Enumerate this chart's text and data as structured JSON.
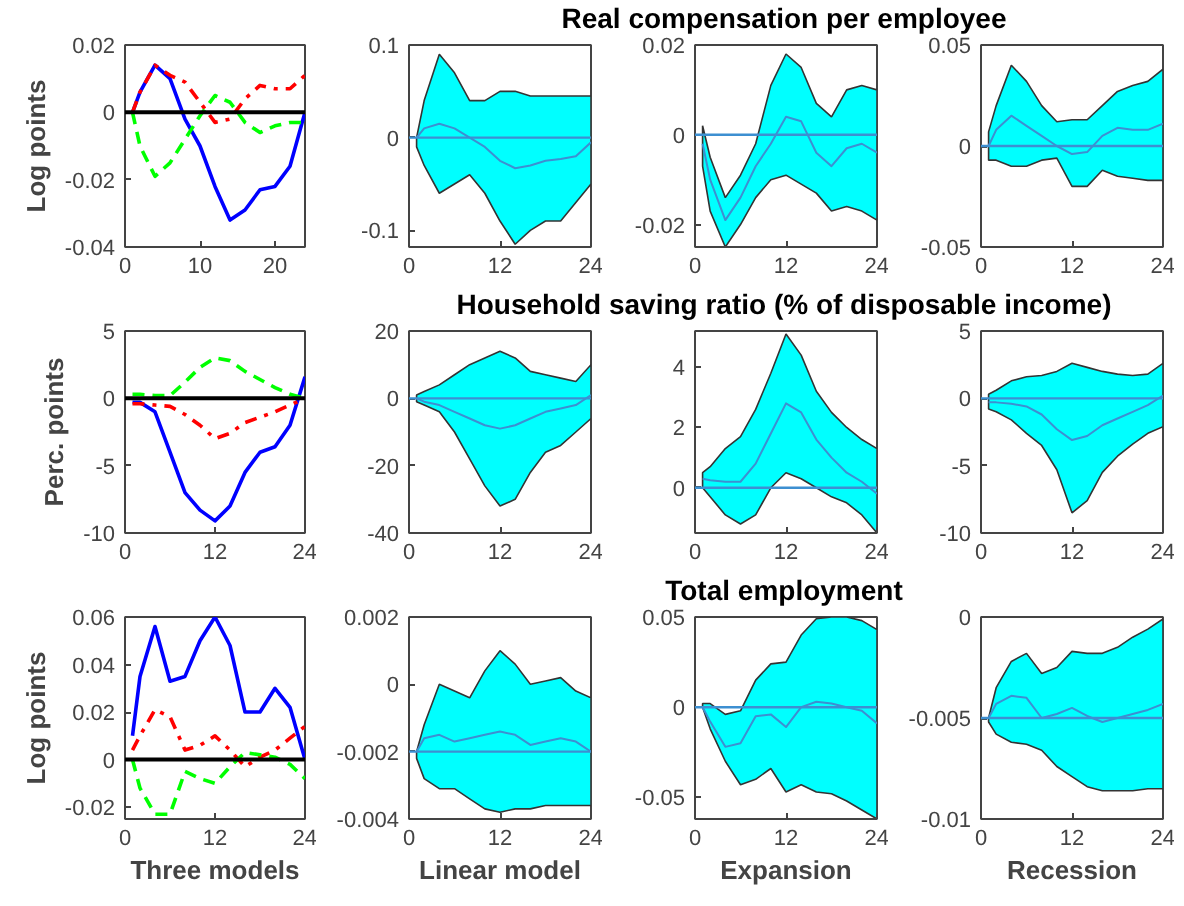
{
  "chart_data": [
    {
      "type": "line",
      "x": [
        1,
        2,
        4,
        6,
        8,
        10,
        12,
        14,
        16,
        18,
        20,
        22,
        24
      ],
      "xlim": [
        0,
        24
      ],
      "xticks": [
        0,
        10,
        20
      ],
      "ylim": [
        -0.04,
        0.02
      ],
      "yticks": [
        -0.04,
        -0.02,
        0,
        0.02
      ],
      "ylabel": "Log points",
      "ref_lines": [
        {
          "axis": "y",
          "value": 0,
          "color": "#000000"
        }
      ],
      "series": [
        {
          "color": "#0000ff",
          "line_style": "solid",
          "values": [
            0,
            0.006,
            0.014,
            0.01,
            -0.002,
            -0.01,
            -0.022,
            -0.032,
            -0.029,
            -0.023,
            -0.022,
            -0.016,
            0
          ]
        },
        {
          "color": "#ff0000",
          "line_style": "dashdot",
          "values": [
            0,
            0.006,
            0.014,
            0.011,
            0.009,
            0.003,
            -0.003,
            -0.002,
            0.004,
            0.008,
            0.007,
            0.007,
            0.011
          ]
        },
        {
          "color": "#00ff00",
          "line_style": "dashed",
          "values": [
            0,
            -0.01,
            -0.019,
            -0.015,
            -0.008,
            -0.001,
            0.005,
            0.003,
            -0.003,
            -0.006,
            -0.004,
            -0.003,
            -0.003
          ]
        }
      ]
    },
    {
      "type": "line",
      "x": [
        1,
        2,
        4,
        6,
        8,
        10,
        12,
        14,
        16,
        18,
        20,
        22,
        24
      ],
      "xlim": [
        0,
        24
      ],
      "xticks": [
        0,
        12,
        24
      ],
      "ylim": [
        -0.118,
        0.1
      ],
      "yticks": [
        -0.1,
        0,
        0.1
      ],
      "ref_lines": [
        {
          "axis": "y",
          "value": 0,
          "color": "#3d8fd1"
        }
      ],
      "series": [
        {
          "color": "#3d8fd1",
          "values": [
            0,
            0.01,
            0.015,
            0.01,
            0,
            -0.01,
            -0.025,
            -0.033,
            -0.03,
            -0.025,
            -0.023,
            -0.02,
            -0.005
          ],
          "lower": [
            -0.01,
            -0.03,
            -0.06,
            -0.05,
            -0.04,
            -0.06,
            -0.09,
            -0.115,
            -0.1,
            -0.09,
            -0.09,
            -0.07,
            -0.05
          ],
          "upper": [
            0,
            0.04,
            0.09,
            0.07,
            0.04,
            0.04,
            0.05,
            0.05,
            0.045,
            0.045,
            0.045,
            0.045,
            0.045
          ]
        }
      ]
    },
    {
      "type": "line",
      "x": [
        1,
        2,
        4,
        6,
        8,
        10,
        12,
        14,
        16,
        18,
        20,
        22,
        24
      ],
      "xlim": [
        0,
        24
      ],
      "xticks": [
        0,
        12,
        24
      ],
      "ylim": [
        -0.025,
        0.02
      ],
      "yticks": [
        -0.02,
        0,
        0.02
      ],
      "title": "Real compensation per employee",
      "ref_lines": [
        {
          "axis": "y",
          "value": 0,
          "color": "#3d8fd1"
        }
      ],
      "series": [
        {
          "color": "#3d8fd1",
          "values": [
            -0.002,
            -0.01,
            -0.019,
            -0.014,
            -0.007,
            -0.002,
            0.004,
            0.003,
            -0.004,
            -0.007,
            -0.003,
            -0.002,
            -0.004
          ],
          "lower": [
            -0.007,
            -0.017,
            -0.025,
            -0.02,
            -0.014,
            -0.01,
            -0.009,
            -0.011,
            -0.013,
            -0.017,
            -0.016,
            -0.017,
            -0.019
          ],
          "upper": [
            0.002,
            -0.005,
            -0.014,
            -0.009,
            -0.002,
            0.011,
            0.018,
            0.015,
            0.007,
            0.004,
            0.01,
            0.011,
            0.01
          ]
        }
      ]
    },
    {
      "type": "line",
      "x": [
        1,
        2,
        4,
        6,
        8,
        10,
        12,
        14,
        16,
        18,
        20,
        22,
        24
      ],
      "xlim": [
        0,
        24
      ],
      "xticks": [
        0,
        12,
        24
      ],
      "ylim": [
        -0.05,
        0.05
      ],
      "yticks": [
        -0.05,
        0,
        0.05
      ],
      "ref_lines": [
        {
          "axis": "y",
          "value": 0,
          "color": "#3d8fd1"
        }
      ],
      "series": [
        {
          "color": "#3d8fd1",
          "values": [
            0,
            0.008,
            0.015,
            0.01,
            0.005,
            0,
            -0.004,
            -0.003,
            0.005,
            0.009,
            0.008,
            0.008,
            0.011
          ],
          "lower": [
            -0.007,
            -0.007,
            -0.01,
            -0.01,
            -0.007,
            -0.006,
            -0.02,
            -0.02,
            -0.012,
            -0.015,
            -0.016,
            -0.017,
            -0.017
          ],
          "upper": [
            0.007,
            0.02,
            0.04,
            0.032,
            0.02,
            0.012,
            0.013,
            0.013,
            0.02,
            0.027,
            0.03,
            0.032,
            0.038
          ]
        }
      ]
    },
    {
      "type": "line",
      "x": [
        1,
        2,
        4,
        6,
        8,
        10,
        12,
        14,
        16,
        18,
        20,
        22,
        24
      ],
      "xlim": [
        0,
        24
      ],
      "xticks": [
        0,
        12,
        24
      ],
      "ylim": [
        -10,
        5
      ],
      "yticks": [
        -10,
        -5,
        0,
        5
      ],
      "ylabel": "Perc. points",
      "ref_lines": [
        {
          "axis": "y",
          "value": 0,
          "color": "#000000"
        }
      ],
      "series": [
        {
          "color": "#0000ff",
          "line_style": "solid",
          "values": [
            -0.3,
            -0.3,
            -1,
            -4,
            -7,
            -8.3,
            -9.1,
            -8,
            -5.5,
            -4,
            -3.6,
            -2,
            1.6
          ]
        },
        {
          "color": "#ff0000",
          "line_style": "dashdot",
          "values": [
            -0.4,
            -0.4,
            -0.5,
            -0.6,
            -1.2,
            -2,
            -3,
            -2.6,
            -1.8,
            -1.4,
            -1,
            -0.5,
            0
          ]
        },
        {
          "color": "#00ff00",
          "line_style": "dashed",
          "values": [
            0.3,
            0.3,
            0.2,
            0.2,
            1.2,
            2.3,
            3,
            2.8,
            2,
            1.4,
            0.8,
            0.3,
            0
          ]
        }
      ]
    },
    {
      "type": "line",
      "x": [
        1,
        2,
        4,
        6,
        8,
        10,
        12,
        14,
        16,
        18,
        20,
        22,
        24
      ],
      "xlim": [
        0,
        24
      ],
      "xticks": [
        0,
        12,
        24
      ],
      "ylim": [
        -40,
        20
      ],
      "yticks": [
        -40,
        -20,
        0,
        20
      ],
      "ref_lines": [
        {
          "axis": "y",
          "value": 0,
          "color": "#3d8fd1"
        }
      ],
      "series": [
        {
          "color": "#3d8fd1",
          "values": [
            0,
            -1,
            -2,
            -4,
            -6,
            -8,
            -9,
            -8,
            -6,
            -4,
            -3,
            -2,
            1
          ],
          "lower": [
            -1,
            -2,
            -4,
            -10,
            -18,
            -26,
            -32,
            -30,
            -22,
            -16,
            -14,
            -10,
            -6
          ],
          "upper": [
            1,
            2,
            4,
            7,
            10,
            12,
            14,
            12,
            8,
            7,
            6,
            5,
            10
          ]
        }
      ]
    },
    {
      "type": "line",
      "x": [
        1,
        2,
        4,
        6,
        8,
        10,
        12,
        14,
        16,
        18,
        20,
        22,
        24
      ],
      "xlim": [
        0,
        24
      ],
      "xticks": [
        0,
        12,
        24
      ],
      "ylim": [
        -1.5,
        5.2
      ],
      "yticks": [
        0,
        2,
        4
      ],
      "title": "Household saving ratio (% of disposable income)",
      "ref_lines": [
        {
          "axis": "y",
          "value": 0,
          "color": "#3d8fd1"
        }
      ],
      "series": [
        {
          "color": "#3d8fd1",
          "values": [
            0.3,
            0.25,
            0.2,
            0.2,
            0.8,
            1.8,
            2.8,
            2.5,
            1.6,
            1,
            0.5,
            0.2,
            -0.2
          ],
          "lower": [
            0,
            -0.3,
            -0.9,
            -1.2,
            -0.9,
            0,
            0.5,
            0.3,
            0,
            -0.3,
            -0.5,
            -0.9,
            -1.5
          ],
          "upper": [
            0.5,
            0.7,
            1.3,
            1.7,
            2.6,
            3.8,
            5.1,
            4.4,
            3.2,
            2.5,
            2,
            1.6,
            1.3
          ]
        }
      ]
    },
    {
      "type": "line",
      "x": [
        1,
        2,
        4,
        6,
        8,
        10,
        12,
        14,
        16,
        18,
        20,
        22,
        24
      ],
      "xlim": [
        0,
        24
      ],
      "xticks": [
        0,
        12,
        24
      ],
      "ylim": [
        -10,
        5
      ],
      "yticks": [
        -10,
        -5,
        0,
        5
      ],
      "ref_lines": [
        {
          "axis": "y",
          "value": 0,
          "color": "#3d8fd1"
        }
      ],
      "series": [
        {
          "color": "#3d8fd1",
          "values": [
            -0.3,
            -0.3,
            -0.4,
            -0.6,
            -1.2,
            -2.3,
            -3.1,
            -2.8,
            -2,
            -1.5,
            -1,
            -0.5,
            0.2
          ],
          "lower": [
            -0.8,
            -1,
            -1.6,
            -2.6,
            -3.5,
            -5.3,
            -8.5,
            -7.6,
            -5.5,
            -4.3,
            -3.4,
            -2.6,
            -2.1
          ],
          "upper": [
            0.3,
            0.6,
            1.3,
            1.6,
            1.7,
            2,
            2.6,
            2.3,
            2,
            1.8,
            1.7,
            1.8,
            2.6
          ]
        }
      ]
    },
    {
      "type": "line",
      "x": [
        1,
        2,
        4,
        6,
        8,
        10,
        12,
        14,
        16,
        18,
        20,
        22,
        24
      ],
      "xlim": [
        0,
        24
      ],
      "xticks": [
        0,
        12,
        24
      ],
      "ylim": [
        -0.025,
        0.06
      ],
      "yticks": [
        -0.02,
        0,
        0.02,
        0.04,
        0.06
      ],
      "ylabel": "Log points",
      "xlabel": "Three models",
      "ref_lines": [
        {
          "axis": "y",
          "value": 0,
          "color": "#000000"
        }
      ],
      "series": [
        {
          "color": "#0000ff",
          "line_style": "solid",
          "values": [
            0.01,
            0.035,
            0.056,
            0.033,
            0.035,
            0.05,
            0.06,
            0.048,
            0.02,
            0.02,
            0.03,
            0.022,
            0
          ]
        },
        {
          "color": "#ff0000",
          "line_style": "dashdot",
          "values": [
            0.004,
            0.01,
            0.021,
            0.018,
            0.004,
            0.006,
            0.01,
            0.004,
            -0.003,
            0.001,
            0.004,
            0.009,
            0.014
          ]
        },
        {
          "color": "#00ff00",
          "line_style": "dashed",
          "values": [
            0,
            -0.012,
            -0.023,
            -0.023,
            -0.005,
            -0.008,
            -0.01,
            -0.003,
            0.003,
            0.002,
            0.001,
            -0.002,
            -0.008
          ]
        }
      ]
    },
    {
      "type": "line",
      "x": [
        1,
        2,
        4,
        6,
        8,
        10,
        12,
        14,
        16,
        18,
        20,
        22,
        24
      ],
      "xlim": [
        0,
        24
      ],
      "xticks": [
        0,
        12,
        24
      ],
      "ylim": [
        -0.004,
        0.002
      ],
      "yticks": [
        -0.004,
        -0.002,
        0,
        0.002
      ],
      "xlabel": "Linear model",
      "ref_lines": [
        {
          "axis": "y",
          "value": -0.002,
          "color": "#3d8fd1"
        }
      ],
      "series": [
        {
          "color": "#3d8fd1",
          "values": [
            -0.002,
            -0.0016,
            -0.0015,
            -0.0017,
            -0.0016,
            -0.0015,
            -0.0014,
            -0.0015,
            -0.0018,
            -0.0017,
            -0.0016,
            -0.0017,
            -0.002
          ],
          "lower": [
            -0.0022,
            -0.0028,
            -0.0031,
            -0.0031,
            -0.0034,
            -0.0037,
            -0.0038,
            -0.0037,
            -0.0037,
            -0.0036,
            -0.0036,
            -0.0036,
            -0.0036
          ],
          "upper": [
            -0.002,
            -0.0012,
            0,
            -0.0002,
            -0.0004,
            0.0004,
            0.001,
            0.0006,
            0,
            0.0001,
            0.0002,
            -0.0002,
            -0.0004
          ]
        }
      ]
    },
    {
      "type": "line",
      "x": [
        1,
        2,
        4,
        6,
        8,
        10,
        12,
        14,
        16,
        18,
        20,
        22,
        24
      ],
      "xlim": [
        0,
        24
      ],
      "xticks": [
        0,
        12,
        24
      ],
      "ylim": [
        -0.062,
        0.05
      ],
      "yticks": [
        -0.05,
        0,
        0.05
      ],
      "title": "Total employment",
      "xlabel": "Expansion",
      "ref_lines": [
        {
          "axis": "y",
          "value": 0,
          "color": "#3d8fd1"
        }
      ],
      "series": [
        {
          "color": "#3d8fd1",
          "values": [
            0,
            -0.008,
            -0.022,
            -0.02,
            -0.005,
            -0.004,
            -0.011,
            0,
            0.003,
            0.002,
            0,
            -0.002,
            -0.009
          ],
          "lower": [
            0,
            -0.012,
            -0.03,
            -0.043,
            -0.04,
            -0.034,
            -0.047,
            -0.043,
            -0.047,
            -0.048,
            -0.052,
            -0.057,
            -0.062
          ],
          "upper": [
            0.002,
            0.002,
            -0.004,
            -0.002,
            0.015,
            0.024,
            0.025,
            0.04,
            0.049,
            0.05,
            0.05,
            0.048,
            0.043
          ]
        }
      ]
    },
    {
      "type": "line",
      "x": [
        1,
        2,
        4,
        6,
        8,
        10,
        12,
        14,
        16,
        18,
        20,
        22,
        24
      ],
      "xlim": [
        0,
        24
      ],
      "xticks": [
        0,
        12,
        24
      ],
      "ylim": [
        -0.01,
        0
      ],
      "yticks": [
        -0.01,
        -0.005,
        0
      ],
      "xlabel": "Recession",
      "ref_lines": [
        {
          "axis": "y",
          "value": -0.005,
          "color": "#3d8fd1"
        }
      ],
      "series": [
        {
          "color": "#3d8fd1",
          "values": [
            -0.005,
            -0.0043,
            -0.0039,
            -0.004,
            -0.005,
            -0.0048,
            -0.0045,
            -0.0049,
            -0.0052,
            -0.005,
            -0.0048,
            -0.0046,
            -0.0043
          ],
          "lower": [
            -0.0052,
            -0.0058,
            -0.0062,
            -0.0063,
            -0.0066,
            -0.0074,
            -0.0079,
            -0.0084,
            -0.0086,
            -0.0086,
            -0.0086,
            -0.0085,
            -0.0085
          ],
          "upper": [
            -0.005,
            -0.0035,
            -0.0022,
            -0.0018,
            -0.0028,
            -0.0025,
            -0.0017,
            -0.0018,
            -0.0018,
            -0.0015,
            -0.001,
            -0.0006,
            -0.0001
          ]
        }
      ]
    }
  ]
}
